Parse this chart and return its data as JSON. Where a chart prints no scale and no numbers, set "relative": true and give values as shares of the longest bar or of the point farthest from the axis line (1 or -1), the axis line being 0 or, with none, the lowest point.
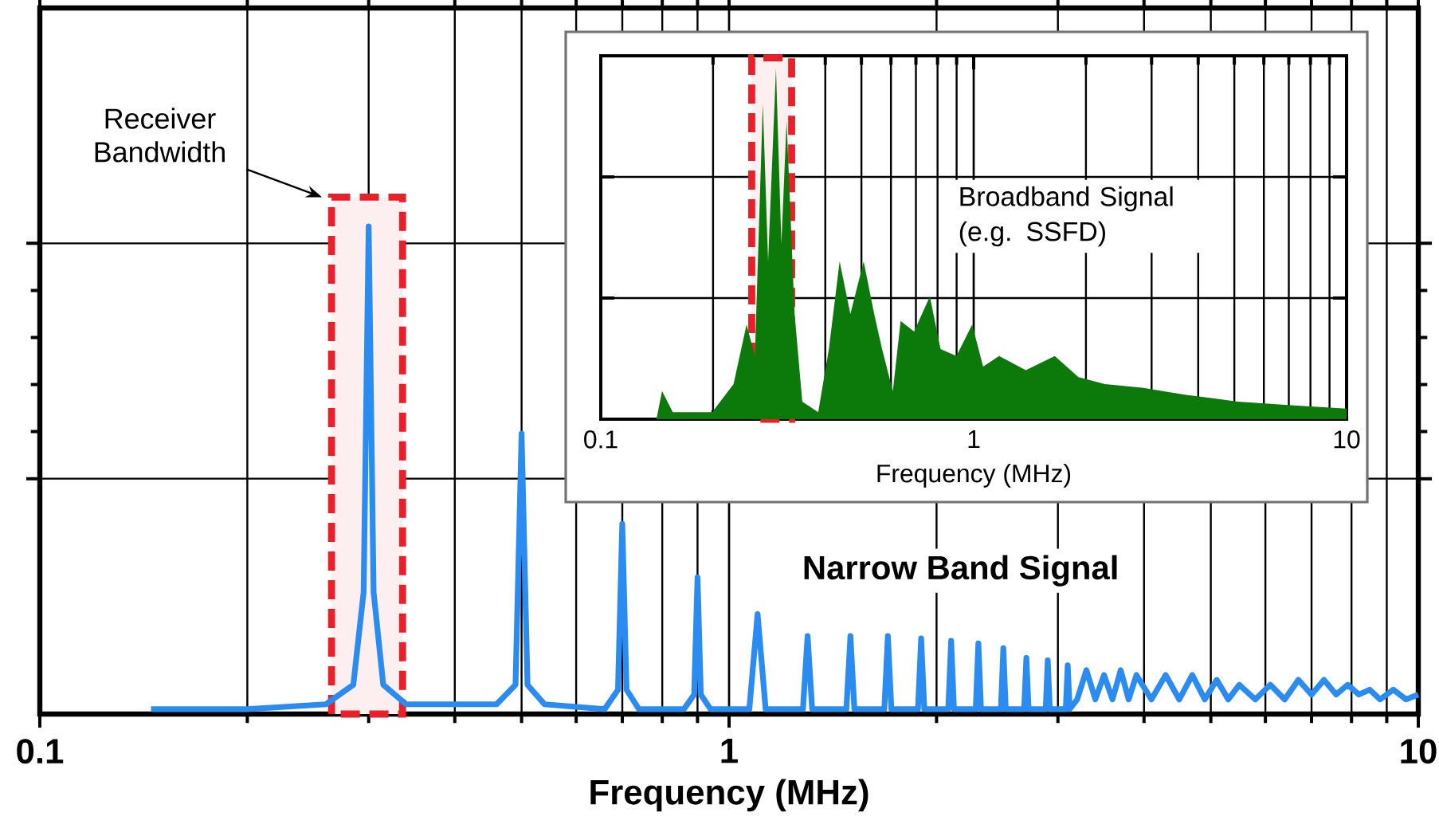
{
  "chart_data": [
    {
      "type": "line",
      "xlabel": "Frequency (MHz)",
      "log": "x",
      "relative": true,
      "grid": true,
      "color": "#2a8cf0",
      "xlim": [
        0.1,
        10
      ],
      "xticks": [
        0.1,
        1,
        10
      ],
      "x": [
        0.145,
        0.2,
        0.26,
        0.285,
        0.295,
        0.3,
        0.305,
        0.315,
        0.34,
        0.46,
        0.49,
        0.5,
        0.51,
        0.54,
        0.66,
        0.69,
        0.7,
        0.71,
        0.74,
        0.86,
        0.89,
        0.9,
        0.91,
        0.94,
        1.07,
        1.1,
        1.13,
        1.28,
        1.3,
        1.32,
        1.48,
        1.5,
        1.52,
        1.68,
        1.7,
        1.72,
        1.88,
        1.9,
        1.92,
        2.08,
        2.1,
        2.12,
        2.28,
        2.3,
        2.32,
        2.48,
        2.5,
        2.52,
        2.68,
        2.7,
        2.72,
        2.88,
        2.9,
        2.92,
        3.08,
        3.1,
        3.12,
        3.2,
        3.3,
        3.4,
        3.5,
        3.6,
        3.7,
        3.8,
        3.9,
        4.1,
        4.3,
        4.5,
        4.7,
        4.9,
        5.1,
        5.3,
        5.5,
        5.8,
        6.1,
        6.4,
        6.7,
        7,
        7.3,
        7.6,
        7.9,
        8.2,
        8.5,
        8.8,
        9.2,
        9.6,
        10
      ],
      "values": [
        0.01,
        0.01,
        0.02,
        0.06,
        0.25,
        1,
        0.25,
        0.06,
        0.02,
        0.02,
        0.06,
        0.575,
        0.06,
        0.02,
        0.01,
        0.05,
        0.39,
        0.05,
        0.01,
        0.01,
        0.04,
        0.28,
        0.04,
        0.01,
        0.01,
        0.205,
        0.01,
        0.01,
        0.16,
        0.01,
        0.01,
        0.16,
        0.01,
        0.01,
        0.16,
        0.01,
        0.01,
        0.155,
        0.01,
        0.01,
        0.15,
        0.01,
        0.01,
        0.145,
        0.01,
        0.01,
        0.135,
        0.01,
        0.01,
        0.115,
        0.01,
        0.01,
        0.11,
        0.01,
        0.01,
        0.1,
        0.01,
        0.03,
        0.09,
        0.03,
        0.08,
        0.03,
        0.09,
        0.03,
        0.08,
        0.03,
        0.08,
        0.03,
        0.08,
        0.03,
        0.07,
        0.03,
        0.06,
        0.03,
        0.06,
        0.03,
        0.07,
        0.04,
        0.07,
        0.04,
        0.06,
        0.04,
        0.05,
        0.03,
        0.05,
        0.03,
        0.04
      ],
      "bands": [
        {
          "axis": "x",
          "from": 0.265,
          "to": 0.336,
          "color": "#e8202a"
        }
      ],
      "annotations": [
        "Receiver Bandwidth",
        "Narrow Band Signal"
      ]
    },
    {
      "type": "area",
      "xlabel": "Frequency (MHz)",
      "log": "x",
      "relative": true,
      "grid": true,
      "color": "#0b7a0b",
      "xlim": [
        0.1,
        10
      ],
      "xticks": [
        0.1,
        1,
        10
      ],
      "x": [
        0.141,
        0.146,
        0.156,
        0.199,
        0.227,
        0.246,
        0.259,
        0.272,
        0.281,
        0.295,
        0.305,
        0.315,
        0.331,
        0.347,
        0.383,
        0.409,
        0.437,
        0.467,
        0.507,
        0.541,
        0.568,
        0.607,
        0.637,
        0.692,
        0.763,
        0.815,
        0.899,
        0.991,
        1.06,
        1.17,
        1.38,
        1.65,
        1.91,
        2.25,
        2.83,
        3.68,
        5.11,
        7.09,
        10
      ],
      "values": [
        0,
        0.08,
        0.02,
        0.02,
        0.1,
        0.27,
        0.18,
        0.9,
        0.45,
        1,
        0.5,
        0.85,
        0.3,
        0.05,
        0.02,
        0.2,
        0.45,
        0.3,
        0.45,
        0.3,
        0.2,
        0.08,
        0.28,
        0.25,
        0.35,
        0.2,
        0.18,
        0.27,
        0.15,
        0.18,
        0.14,
        0.18,
        0.12,
        0.1,
        0.09,
        0.07,
        0.05,
        0.04,
        0.03
      ],
      "bands": [
        {
          "axis": "x",
          "from": 0.254,
          "to": 0.325,
          "color": "#e8202a"
        }
      ],
      "annotations": [
        "Broadband Signal (e.g. SSFD)"
      ]
    }
  ]
}
